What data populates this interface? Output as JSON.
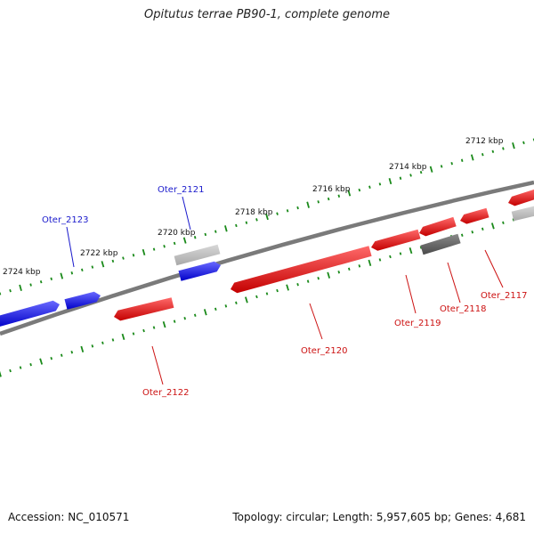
{
  "header": {
    "title": "Opitutus terrae PB90-1, complete genome"
  },
  "footer": {
    "accession": "Accession: NC_010571",
    "summary": "Topology: circular; Length: 5,957,605 bp; Genes: 4,681"
  },
  "colors": {
    "forward": "#1a1aff",
    "reverse": "#ee1111",
    "pseudo_light": "#bbbbbb",
    "pseudo_dark": "#666666",
    "backbone": "#808080",
    "ticks": "#1a8a1a",
    "label_forward": "#1a1acc",
    "label_reverse": "#cc1111"
  },
  "scale_labels": [
    "2712 kbp",
    "2714 kbp",
    "2716 kbp",
    "2718 kbp",
    "2720 kbp",
    "2722 kbp",
    "2724 kbp"
  ],
  "gene_labels": [
    {
      "text": "Oter_2121",
      "strand": "forward"
    },
    {
      "text": "Oter_2123",
      "strand": "forward"
    },
    {
      "text": "Oter_2117",
      "strand": "reverse"
    },
    {
      "text": "Oter_2118",
      "strand": "reverse"
    },
    {
      "text": "Oter_2119",
      "strand": "reverse"
    },
    {
      "text": "Oter_2120",
      "strand": "reverse"
    },
    {
      "text": "Oter_2122",
      "strand": "reverse"
    }
  ],
  "genes": [
    {
      "strand": "forward",
      "kind": "cds"
    },
    {
      "strand": "forward",
      "kind": "cds"
    },
    {
      "strand": "forward",
      "kind": "cds"
    },
    {
      "strand": "forward",
      "kind": "pseudo_light"
    },
    {
      "strand": "forward",
      "kind": "pseudo_light"
    },
    {
      "strand": "reverse",
      "kind": "cds"
    },
    {
      "strand": "reverse",
      "kind": "cds"
    },
    {
      "strand": "reverse",
      "kind": "cds"
    },
    {
      "strand": "reverse",
      "kind": "cds"
    },
    {
      "strand": "reverse",
      "kind": "cds"
    },
    {
      "strand": "reverse",
      "kind": "cds"
    },
    {
      "strand": "reverse",
      "kind": "pseudo_dark"
    }
  ]
}
